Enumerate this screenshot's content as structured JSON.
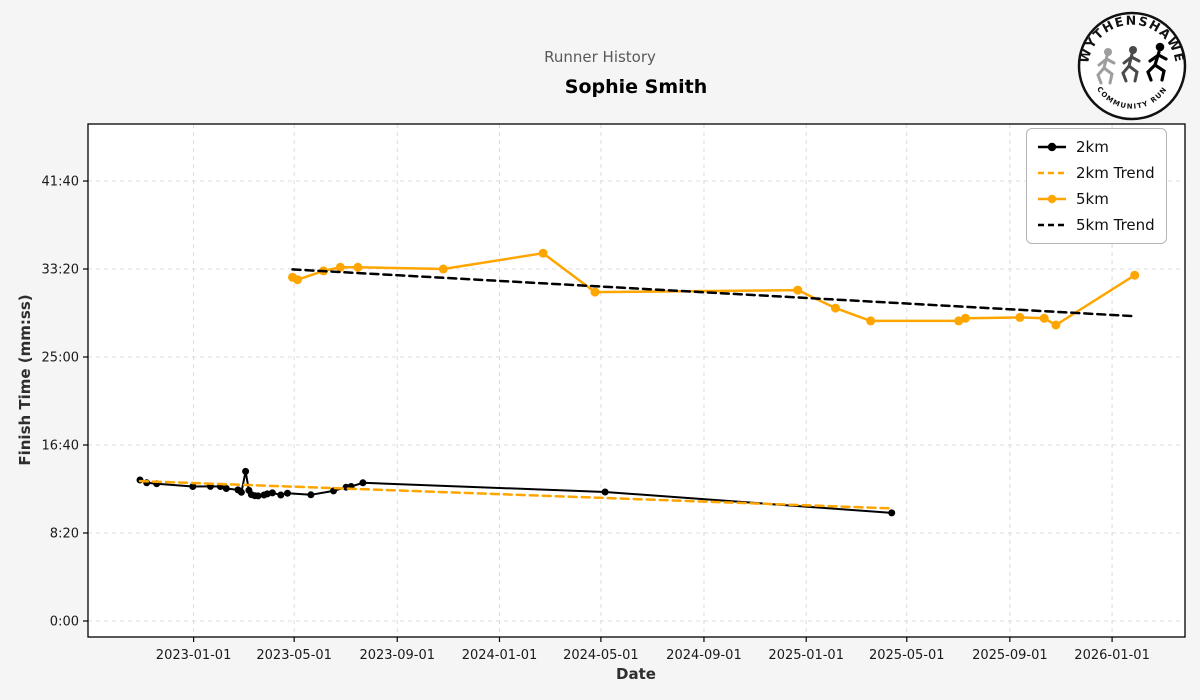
{
  "header": {
    "title": "Runner History",
    "subtitle": "Sophie Smith"
  },
  "logo": {
    "top_text": "WYTHENSHAWE",
    "bottom_text": "COMMUNITY RUN"
  },
  "chart_data": {
    "type": "line",
    "title": "Runner History",
    "subtitle": "Sophie Smith",
    "xlabel": "Date",
    "ylabel": "Finish Time (mm:ss)",
    "grid": true,
    "legend_position": "upper right",
    "x_domain": [
      "2022-08-28",
      "2026-03-29"
    ],
    "y_domain_seconds": [
      -91,
      2824
    ],
    "x_ticks": [
      "2023-01-01",
      "2023-05-01",
      "2023-09-01",
      "2024-01-01",
      "2024-05-01",
      "2024-09-01",
      "2025-01-01",
      "2025-05-01",
      "2025-09-01",
      "2026-01-01"
    ],
    "y_ticks": [
      [
        "0:00",
        0
      ],
      [
        "8:20",
        500
      ],
      [
        "16:40",
        1000
      ],
      [
        "25:00",
        1500
      ],
      [
        "33:20",
        2000
      ],
      [
        "41:40",
        2500
      ]
    ],
    "colors": {
      "series_2km": "#000000",
      "series_5km": "#FFA500",
      "grid": "#dcdcdc",
      "background": "#f5f5f5",
      "plot_background": "#ffffff"
    },
    "series": [
      {
        "name": "2km",
        "color": "#000000",
        "style": "solid",
        "marker": true,
        "points": [
          [
            "2022-10-29",
            "13:21"
          ],
          [
            "2022-11-06",
            "13:05"
          ],
          [
            "2022-11-18",
            "13:00"
          ],
          [
            "2022-12-31",
            "12:44"
          ],
          [
            "2023-01-21",
            "12:45"
          ],
          [
            "2023-02-02",
            "12:44"
          ],
          [
            "2023-02-09",
            "12:33"
          ],
          [
            "2023-02-23",
            "12:25"
          ],
          [
            "2023-02-27",
            "12:11"
          ],
          [
            "2023-03-04",
            "14:10"
          ],
          [
            "2023-03-08",
            "12:22"
          ],
          [
            "2023-03-11",
            "11:58"
          ],
          [
            "2023-03-15",
            "11:52"
          ],
          [
            "2023-03-19",
            "11:51"
          ],
          [
            "2023-03-26",
            "11:56"
          ],
          [
            "2023-03-30",
            "12:02"
          ],
          [
            "2023-04-05",
            "12:08"
          ],
          [
            "2023-04-15",
            "11:56"
          ],
          [
            "2023-04-23",
            "12:06"
          ],
          [
            "2023-05-21",
            "11:57"
          ],
          [
            "2023-06-17",
            "12:19"
          ],
          [
            "2023-07-02",
            "12:40"
          ],
          [
            "2023-07-08",
            "12:44"
          ],
          [
            "2023-07-22",
            "13:05"
          ],
          [
            "2024-05-06",
            "12:13"
          ],
          [
            "2025-04-13",
            "10:14"
          ]
        ]
      },
      {
        "name": "2km Trend",
        "color": "#FFA500",
        "style": "dashed",
        "marker": false,
        "points": [
          [
            "2022-10-29",
            "13:15"
          ],
          [
            "2025-04-13",
            "10:40"
          ]
        ]
      },
      {
        "name": "5km",
        "color": "#FFA500",
        "style": "solid",
        "marker": true,
        "points": [
          [
            "2023-04-29",
            "32:33"
          ],
          [
            "2023-05-05",
            "32:19"
          ],
          [
            "2023-06-05",
            "33:09"
          ],
          [
            "2023-06-25",
            "33:30"
          ],
          [
            "2023-07-16",
            "33:30"
          ],
          [
            "2023-10-26",
            "33:20"
          ],
          [
            "2024-02-22",
            "34:50"
          ],
          [
            "2024-04-24",
            "31:09"
          ],
          [
            "2024-12-22",
            "31:20"
          ],
          [
            "2025-02-05",
            "29:38"
          ],
          [
            "2025-03-19",
            "28:25"
          ],
          [
            "2025-07-02",
            "28:25"
          ],
          [
            "2025-07-10",
            "28:40"
          ],
          [
            "2025-09-13",
            "28:45"
          ],
          [
            "2025-10-12",
            "28:40"
          ],
          [
            "2025-10-26",
            "28:02"
          ],
          [
            "2026-01-28",
            "32:45"
          ]
        ]
      },
      {
        "name": "5km Trend",
        "color": "#000000",
        "style": "dashed",
        "marker": false,
        "points": [
          [
            "2023-04-29",
            "33:18"
          ],
          [
            "2026-01-28",
            "28:52"
          ]
        ]
      }
    ]
  }
}
